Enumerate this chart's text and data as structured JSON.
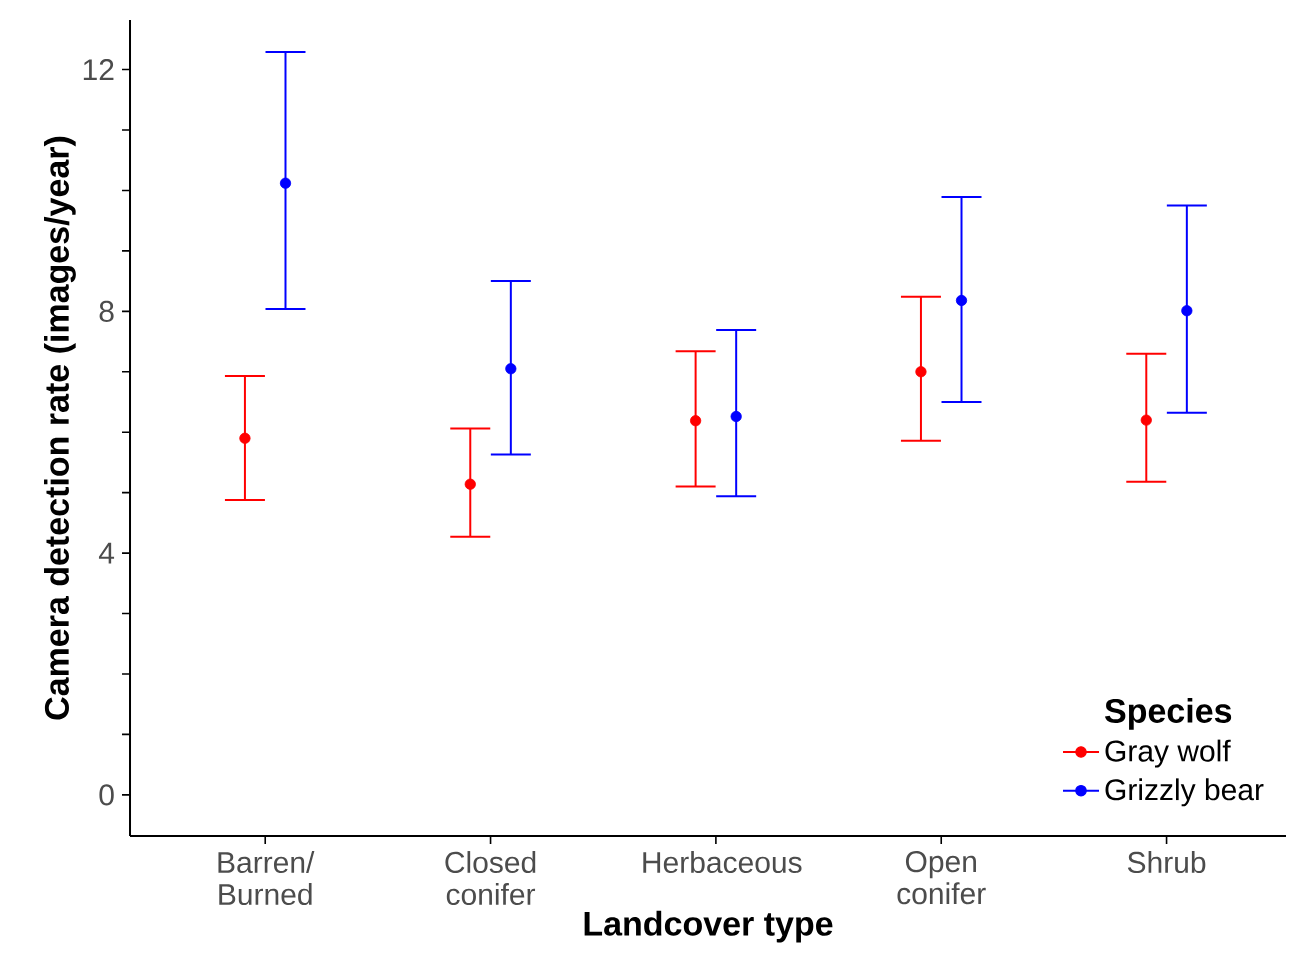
{
  "chart_data": {
    "type": "scatter",
    "xlabel": "Landcover type",
    "ylabel": "Camera detection rate (images/year)",
    "legend_title": "Species",
    "categories": [
      "Barren/ Burned",
      "Closed conifer",
      "Herbaceous",
      "Open conifer",
      "Shrub"
    ],
    "series": [
      {
        "name": "Gray wolf",
        "color": "#ff0000",
        "values": [
          5.9,
          5.14,
          6.19,
          7.0,
          6.2
        ],
        "errors": [
          [
            4.88,
            6.93
          ],
          [
            4.27,
            6.06
          ],
          [
            5.1,
            7.34
          ],
          [
            5.86,
            8.24
          ],
          [
            5.18,
            7.3
          ]
        ]
      },
      {
        "name": "Grizzly bear",
        "color": "#0000ff",
        "values": [
          10.12,
          7.05,
          6.26,
          8.18,
          8.01
        ],
        "errors": [
          [
            8.04,
            12.29
          ],
          [
            5.63,
            8.5
          ],
          [
            4.94,
            7.69
          ],
          [
            6.5,
            9.89
          ],
          [
            6.32,
            9.75
          ]
        ]
      }
    ],
    "ylim": [
      -0.68,
      12.82
    ],
    "yticks": [
      0,
      {
        "value": 1,
        "label": null
      },
      {
        "value": 2,
        "label": null
      },
      {
        "value": 3,
        "label": null
      },
      4,
      {
        "value": 5,
        "label": null
      },
      {
        "value": 6,
        "label": null
      },
      {
        "value": 7,
        "label": null
      },
      8,
      {
        "value": 9,
        "label": null
      },
      {
        "value": 10,
        "label": null
      },
      {
        "value": 11,
        "label": null
      },
      12
    ],
    "marker": "circle",
    "legend": "bottom right",
    "grid": false
  }
}
